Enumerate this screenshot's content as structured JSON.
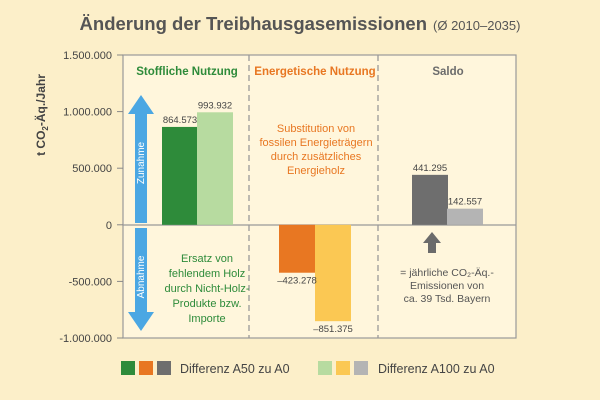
{
  "chart_data": {
    "type": "bar",
    "title": "Änderung der Treibhausgasemissionen",
    "subtitle": "(Ø 2010–2035)",
    "ylabel_parts": [
      "t CO",
      "2",
      "-Äq./Jahr"
    ],
    "ylim": [
      -1000000,
      1500000
    ],
    "yticks": [
      {
        "value": 1500000,
        "label": "1.500.000"
      },
      {
        "value": 1000000,
        "label": "1.000.000"
      },
      {
        "value": 500000,
        "label": "500.000"
      },
      {
        "value": 0,
        "label": "0"
      },
      {
        "value": -500000,
        "label": "-500.000"
      },
      {
        "value": -1000000,
        "label": "-1.000.000"
      }
    ],
    "categories": [
      "Stoffliche Nutzung",
      "Energetische Nutzung",
      "Saldo"
    ],
    "category_colors": [
      "#2e8b3a",
      "#e87722",
      "#6b6b6b"
    ],
    "series": [
      {
        "name": "Differenz A50 zu A0",
        "values": [
          864573,
          -423278,
          441295
        ],
        "labels": [
          "864.573",
          "–423.278",
          "441.295"
        ],
        "colors": [
          "#2e8b3a",
          "#e87722",
          "#6e6e6e"
        ]
      },
      {
        "name": "Differenz A100 zu A0",
        "values": [
          993932,
          -851375,
          142557
        ],
        "labels": [
          "993.932",
          "–851.375",
          "142.557"
        ],
        "colors": [
          "#b7dba0",
          "#fbc853",
          "#b4b4b4"
        ]
      }
    ],
    "arrow_labels": {
      "up": "Zunahme",
      "down": "Abnahme"
    },
    "annotations": {
      "stoffliche": [
        "Ersatz von",
        "fehlendem Holz",
        "durch Nicht-Holz-",
        "Produkte bzw.",
        "Importe"
      ],
      "energetische": [
        "Substitution von",
        "fossilen Energieträgern",
        "durch zusätzliches",
        "Energieholz"
      ],
      "saldo": [
        "= jährliche CO₂-Äq.-",
        "Emissionen von",
        "ca. 39 Tsd. Bayern"
      ]
    },
    "grid": false,
    "legend_position": "bottom"
  }
}
